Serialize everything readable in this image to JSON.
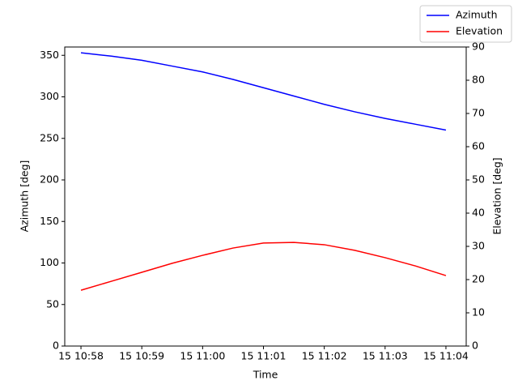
{
  "chart_data": {
    "type": "line",
    "x_label": "Time",
    "y_label": "Azimuth [deg]",
    "y2_label": "Elevation [deg]",
    "x": [
      "15 10:58:00",
      "15 10:58:30",
      "15 10:59:00",
      "15 10:59:30",
      "15 11:00:00",
      "15 11:00:30",
      "15 11:01:00",
      "15 11:01:30",
      "15 11:02:00",
      "15 11:02:30",
      "15 11:03:00",
      "15 11:03:30",
      "15 11:04:00"
    ],
    "series": [
      {
        "name": "Azimuth",
        "color": "#0000ff",
        "values": [
          353,
          349,
          344,
          337,
          330,
          321,
          311,
          301,
          291,
          282,
          274,
          267,
          260
        ]
      },
      {
        "name": "Elevation",
        "color": "#ff0000",
        "axis": "y2",
        "values": [
          16.8,
          19.5,
          22.2,
          24.9,
          27.3,
          29.5,
          31.0,
          31.2,
          30.5,
          28.8,
          26.6,
          24.1,
          21.2
        ]
      }
    ],
    "xlim": [
      "15 10:57:44",
      "15 11:04:20"
    ],
    "xticks": [
      {
        "value": "15 10:58:00",
        "label": "15 10:58"
      },
      {
        "value": "15 10:59:00",
        "label": "15 10:59"
      },
      {
        "value": "15 11:00:00",
        "label": "15 11:00"
      },
      {
        "value": "15 11:01:00",
        "label": "15 11:01"
      },
      {
        "value": "15 11:02:00",
        "label": "15 11:02"
      },
      {
        "value": "15 11:03:00",
        "label": "15 11:03"
      },
      {
        "value": "15 11:04:00",
        "label": "15 11:04"
      }
    ],
    "ylim": [
      0,
      360
    ],
    "yticks": [
      0,
      50,
      100,
      150,
      200,
      250,
      300,
      350
    ],
    "y2lim": [
      0,
      90
    ],
    "y2ticks": [
      0,
      10,
      20,
      30,
      40,
      50,
      60,
      70,
      80,
      90
    ],
    "legend": "upper right"
  }
}
